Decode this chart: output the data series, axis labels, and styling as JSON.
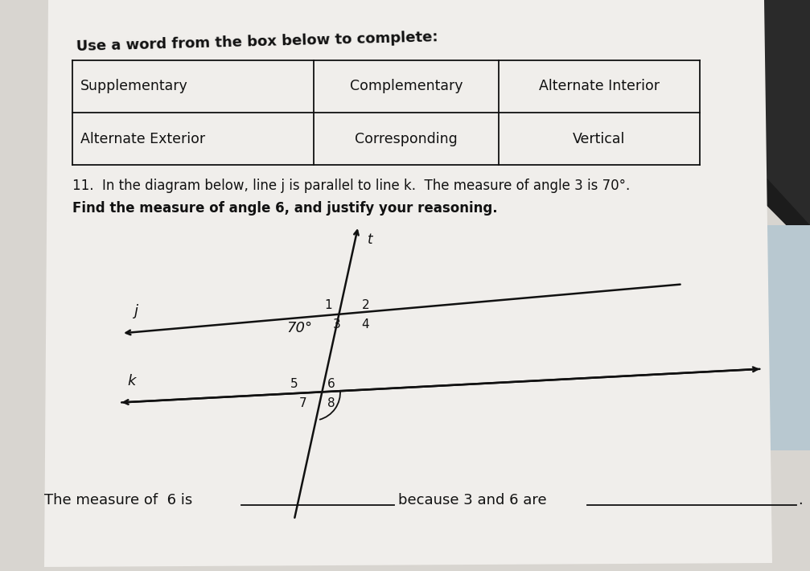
{
  "bg_color": "#d8d5d0",
  "paper_color": "#f5f5f3",
  "dark_corner_color": "#1a1a1a",
  "title_instruction": "Use a word from the box below to complete:",
  "row1_left": "Supplementary",
  "row2_left": "Alternate Exterior",
  "row1_right_top": "Complementary",
  "row2_right_top": "Corresponding",
  "row1_right_bottom": "Alternate Interior",
  "row2_right_bottom": "Vertical",
  "question_line1": "11.  In the diagram below, line j is parallel to line k.  The measure of angle 3 is 70°.",
  "question_line2": "Find the measure of angle 6, and justify your reasoning.",
  "line_j_label": "j",
  "line_k_label": "k",
  "transversal_label": "t",
  "angle_measure_label": "70°",
  "bottom_line": "The measure of  6 is ________ because 3 and 6 are _________________________、",
  "text_color": "#111111",
  "line_color": "#111111"
}
